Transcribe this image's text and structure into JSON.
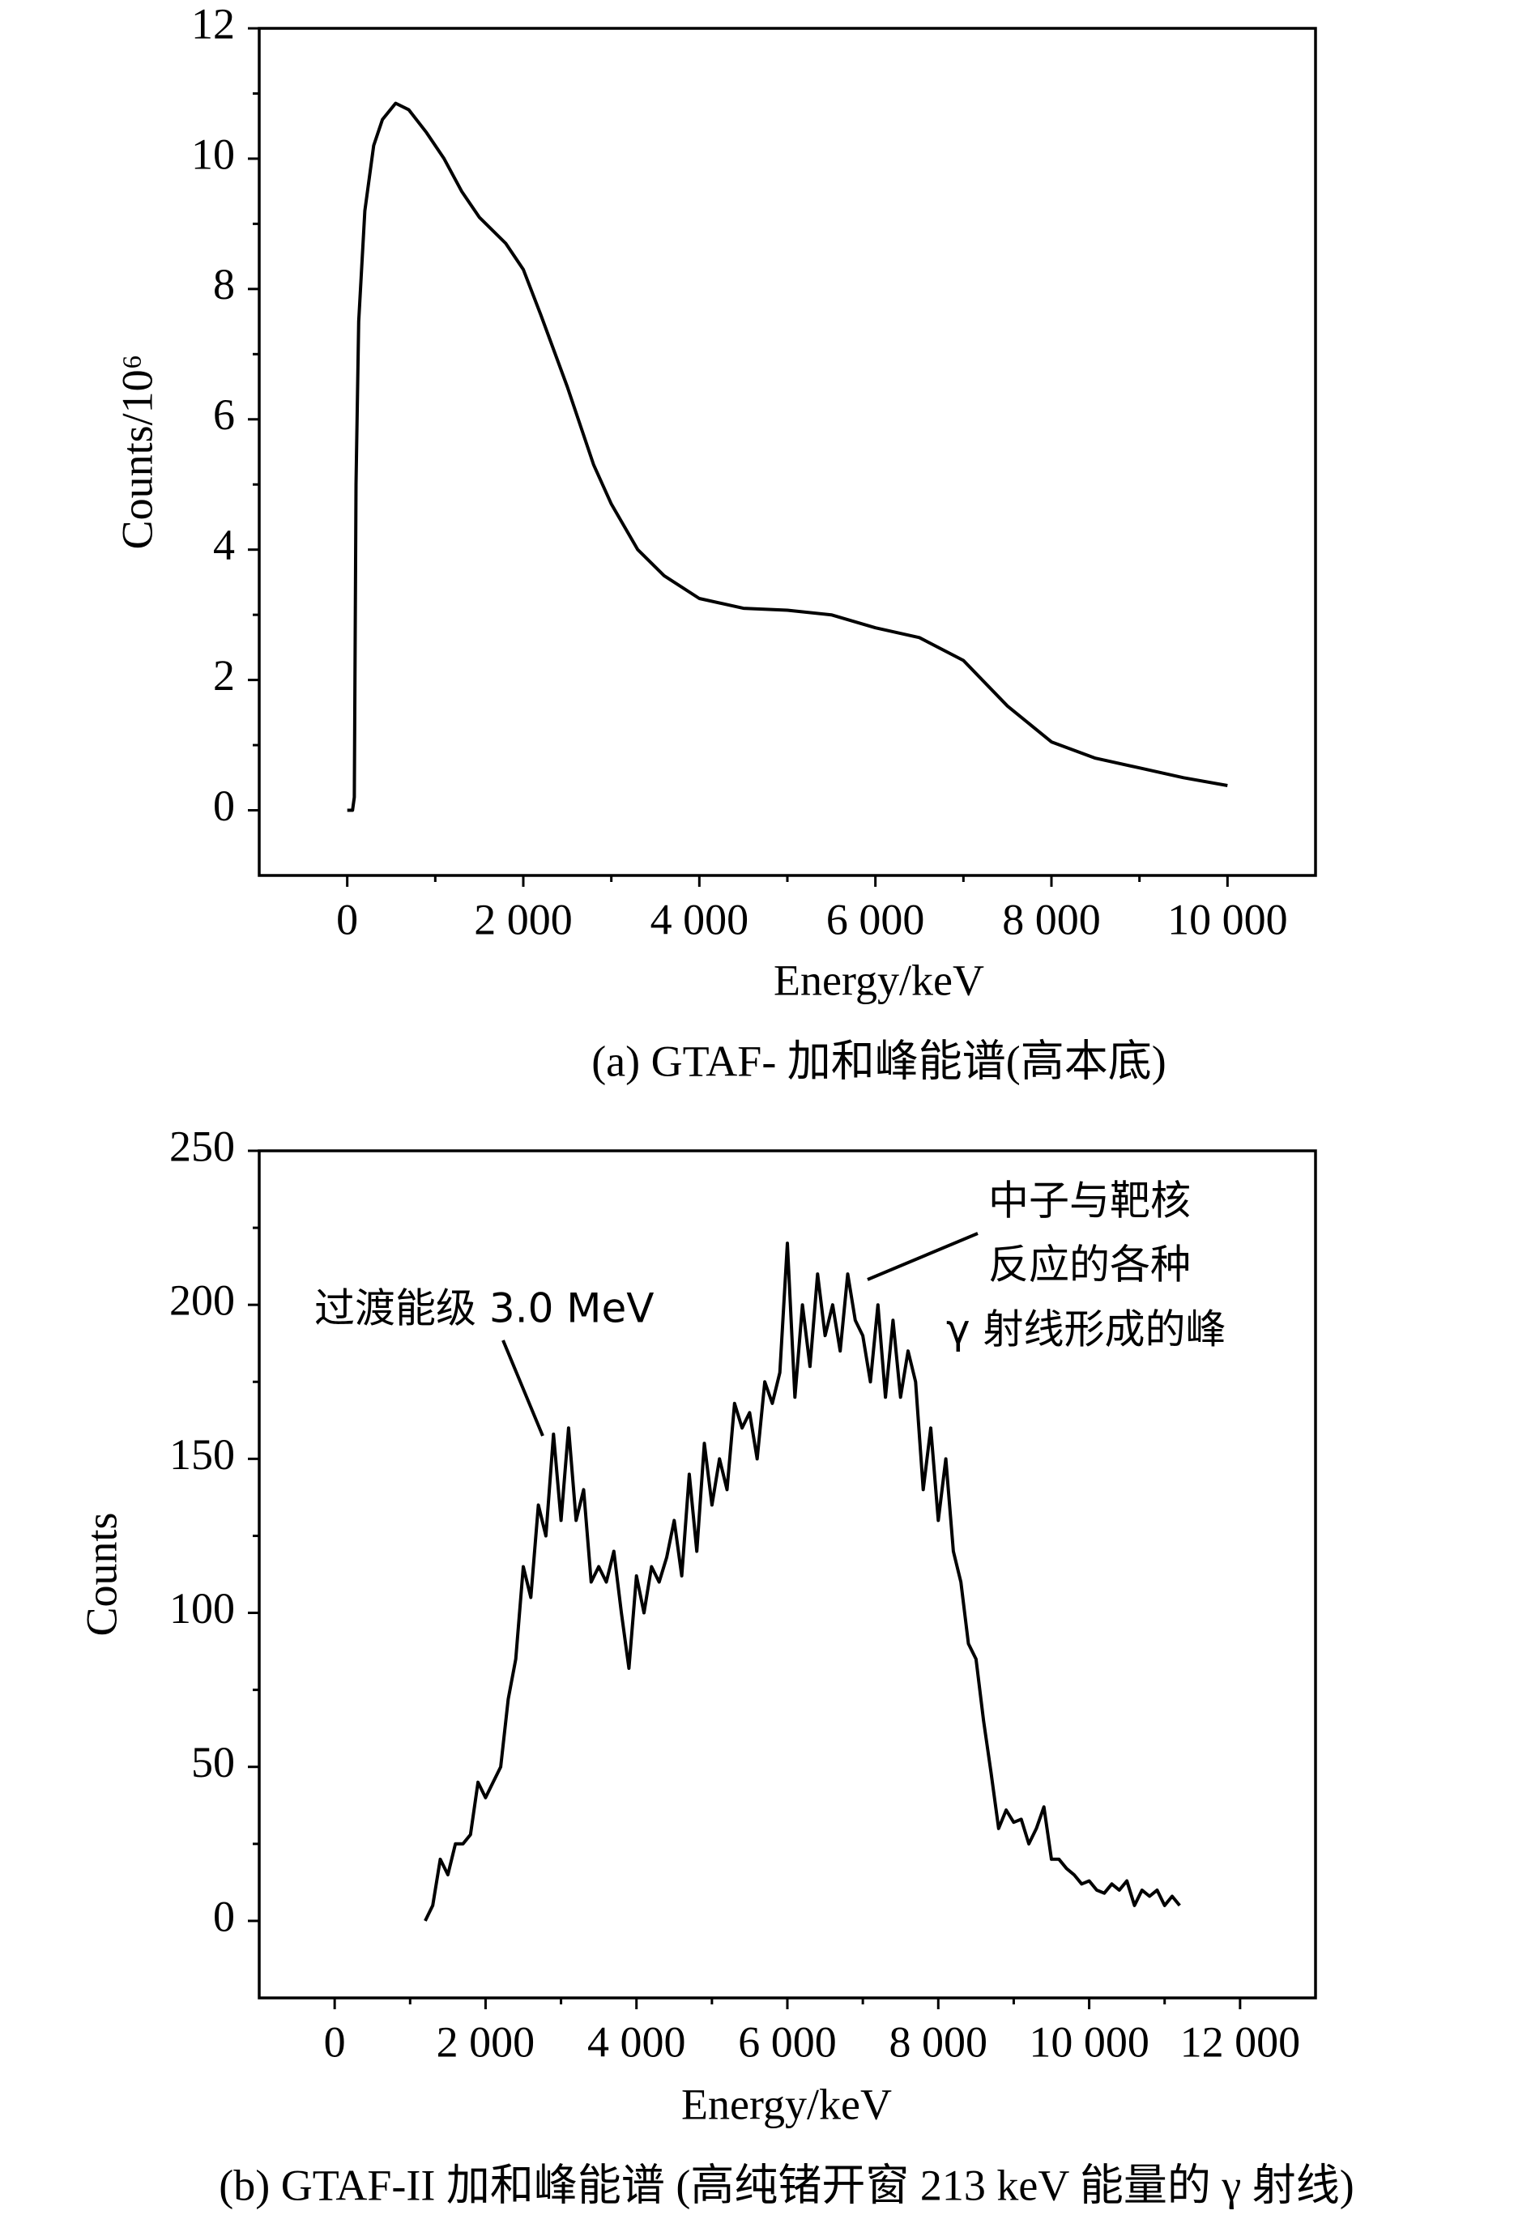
{
  "chart_data": [
    {
      "type": "line",
      "xlabel": "Energy/keV",
      "ylabel": "Counts/10⁶",
      "caption": "(a) GTAF- 加和峰能谱(高本底)",
      "xlim": [
        -1000,
        11000
      ],
      "ylim": [
        -1,
        12
      ],
      "xticks": [
        0,
        {
          "value": 2000,
          "label": "2 000"
        },
        {
          "value": 4000,
          "label": "4 000"
        },
        {
          "value": 6000,
          "label": "6 000"
        },
        {
          "value": 8000,
          "label": "8 000"
        },
        {
          "value": 10000,
          "label": "10 000"
        }
      ],
      "yticks": [
        0,
        2,
        4,
        6,
        8,
        10,
        12
      ],
      "color": "#000000",
      "x": [
        0,
        60,
        80,
        100,
        130,
        200,
        300,
        400,
        550,
        700,
        900,
        1100,
        1300,
        1500,
        1800,
        2000,
        2200,
        2500,
        2800,
        3000,
        3300,
        3600,
        4000,
        4500,
        5000,
        5500,
        6000,
        6500,
        7000,
        7500,
        8000,
        8500,
        9000,
        9500,
        10000
      ],
      "values": [
        0,
        0,
        0.2,
        5,
        7.5,
        9.2,
        10.2,
        10.6,
        10.85,
        10.75,
        10.4,
        10.0,
        9.5,
        9.1,
        8.7,
        8.3,
        7.6,
        6.5,
        5.3,
        4.7,
        4.0,
        3.6,
        3.25,
        3.1,
        3.07,
        3.0,
        2.8,
        2.65,
        2.3,
        1.6,
        1.05,
        0.8,
        0.65,
        0.5,
        0.38
      ]
    },
    {
      "type": "line",
      "xlabel": "Energy/keV",
      "ylabel": "Counts",
      "caption": "(b) GTAF-II 加和峰能谱 (高纯锗开窗 213 keV 能量的 γ 射线)",
      "xlim": [
        -1000,
        13000
      ],
      "ylim": [
        -25,
        250
      ],
      "xticks": [
        0,
        {
          "value": 2000,
          "label": "2 000"
        },
        {
          "value": 4000,
          "label": "4 000"
        },
        {
          "value": 6000,
          "label": "6 000"
        },
        {
          "value": 8000,
          "label": "8 000"
        },
        {
          "value": 10000,
          "label": "10 000"
        },
        {
          "value": 12000,
          "label": "12 000"
        }
      ],
      "yticks": [
        0,
        50,
        100,
        150,
        200,
        250
      ],
      "color": "#000000",
      "annotations": [
        "过渡能级 3.0 MeV",
        "中子与靶核",
        "反应的各种",
        "γ 射线形成的峰"
      ],
      "x": [
        1200,
        1300,
        1400,
        1500,
        1600,
        1700,
        1800,
        1900,
        2000,
        2100,
        2200,
        2300,
        2400,
        2500,
        2600,
        2700,
        2800,
        2900,
        3000,
        3100,
        3200,
        3300,
        3400,
        3500,
        3600,
        3700,
        3800,
        3900,
        4000,
        4100,
        4200,
        4300,
        4400,
        4500,
        4600,
        4700,
        4800,
        4900,
        5000,
        5100,
        5200,
        5300,
        5400,
        5500,
        5600,
        5700,
        5800,
        5900,
        6000,
        6100,
        6200,
        6300,
        6400,
        6500,
        6600,
        6700,
        6800,
        6900,
        7000,
        7100,
        7200,
        7300,
        7400,
        7500,
        7600,
        7700,
        7800,
        7900,
        8000,
        8100,
        8200,
        8300,
        8400,
        8500,
        8600,
        8700,
        8800,
        8900,
        9000,
        9100,
        9200,
        9300,
        9400,
        9500,
        9600,
        9700,
        9800,
        9900,
        10000,
        10100,
        10200,
        10300,
        10400,
        10500,
        10600,
        10700,
        10800,
        10900,
        11000,
        11100,
        11200
      ],
      "values": [
        0,
        5,
        20,
        15,
        25,
        25,
        28,
        45,
        40,
        45,
        50,
        72,
        85,
        115,
        105,
        135,
        125,
        158,
        130,
        160,
        130,
        140,
        110,
        115,
        110,
        120,
        100,
        82,
        112,
        100,
        115,
        110,
        118,
        130,
        112,
        145,
        120,
        155,
        135,
        150,
        140,
        168,
        160,
        165,
        150,
        175,
        168,
        178,
        220,
        170,
        200,
        180,
        210,
        190,
        200,
        185,
        210,
        195,
        190,
        175,
        200,
        170,
        195,
        170,
        185,
        175,
        140,
        160,
        130,
        150,
        120,
        110,
        90,
        85,
        65,
        48,
        30,
        36,
        32,
        33,
        25,
        30,
        37,
        20,
        20,
        17,
        15,
        12,
        13,
        10,
        9,
        12,
        10,
        13,
        5,
        10,
        8,
        10,
        5,
        8,
        5
      ]
    }
  ]
}
